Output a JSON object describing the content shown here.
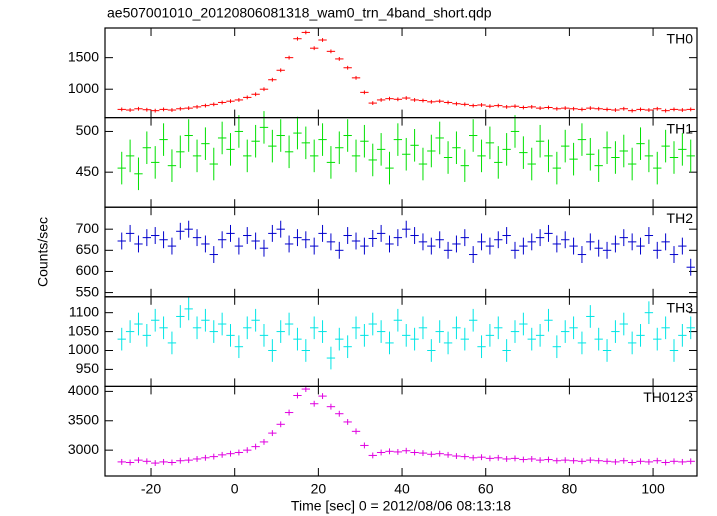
{
  "chart_data": {
    "type": "stacked-lightcurve",
    "title": "ae507001010_20120806081318_wam0_trn_4band_short.qdp",
    "xlabel": "Time [sec] 0 = 2012/08/06 08:13:18",
    "ylabel": "Counts/sec",
    "xlim": [
      -31,
      110.5
    ],
    "xticks": [
      -20,
      0,
      20,
      40,
      60,
      80,
      100
    ],
    "bin_width": 2,
    "x": [
      -27,
      -25,
      -23,
      -21,
      -19,
      -17,
      -15,
      -13,
      -11,
      -9,
      -7,
      -5,
      -3,
      -1,
      1,
      3,
      5,
      7,
      9,
      11,
      13,
      15,
      17,
      19,
      21,
      23,
      25,
      27,
      29,
      31,
      33,
      35,
      37,
      39,
      41,
      43,
      45,
      47,
      49,
      51,
      53,
      55,
      57,
      59,
      61,
      63,
      65,
      67,
      69,
      71,
      73,
      75,
      77,
      79,
      81,
      83,
      85,
      87,
      89,
      91,
      93,
      95,
      97,
      99,
      101,
      103,
      105,
      107,
      109
    ],
    "series": [
      {
        "name": "TH0",
        "color": "#ff0000",
        "ylim": [
          550,
          1970
        ],
        "yticks": [
          1000,
          1500
        ],
        "error": 30,
        "values": [
          680,
          670,
          690,
          675,
          660,
          680,
          670,
          690,
          700,
          720,
          740,
          760,
          790,
          810,
          830,
          870,
          920,
          1000,
          1150,
          1300,
          1500,
          1800,
          1900,
          1650,
          1780,
          1600,
          1480,
          1340,
          1180,
          950,
          780,
          830,
          850,
          840,
          860,
          830,
          820,
          800,
          810,
          790,
          770,
          760,
          740,
          750,
          730,
          740,
          720,
          730,
          710,
          720,
          700,
          710,
          690,
          700,
          690,
          680,
          700,
          690,
          680,
          670,
          690,
          660,
          680,
          670,
          690,
          660,
          680,
          670,
          680
        ]
      },
      {
        "name": "TH1",
        "color": "#00e000",
        "ylim": [
          407,
          517
        ],
        "yticks": [
          450,
          500
        ],
        "error": 20,
        "values": [
          455,
          470,
          448,
          480,
          462,
          490,
          458,
          475,
          495,
          470,
          485,
          460,
          492,
          478,
          500,
          470,
          488,
          505,
          482,
          495,
          475,
          498,
          486,
          470,
          490,
          462,
          480,
          495,
          470,
          488,
          465,
          478,
          455,
          490,
          472,
          483,
          460,
          476,
          492,
          468,
          480,
          458,
          495,
          470,
          486,
          462,
          478,
          500,
          474,
          460,
          488,
          470,
          455,
          482,
          466,
          490,
          472,
          458,
          480,
          468,
          476,
          460,
          485,
          470,
          455,
          482,
          468,
          478,
          470
        ]
      },
      {
        "name": "TH2",
        "color": "#0000cc",
        "ylim": [
          540,
          752
        ],
        "yticks": [
          550,
          600,
          650,
          700
        ],
        "error": 20,
        "values": [
          672,
          690,
          665,
          680,
          685,
          675,
          660,
          695,
          700,
          680,
          665,
          640,
          675,
          690,
          660,
          685,
          672,
          655,
          690,
          700,
          665,
          680,
          675,
          660,
          690,
          670,
          650,
          685,
          672,
          660,
          678,
          690,
          665,
          680,
          700,
          685,
          670,
          660,
          675,
          650,
          665,
          680,
          640,
          670,
          660,
          675,
          685,
          650,
          660,
          670,
          680,
          690,
          665,
          675,
          660,
          640,
          670,
          655,
          650,
          665,
          680,
          670,
          660,
          685,
          650,
          670,
          640,
          660,
          610
        ]
      },
      {
        "name": "TH3",
        "color": "#00e5e5",
        "ylim": [
          905,
          1142
        ],
        "yticks": [
          950,
          1000,
          1050,
          1100
        ],
        "error": 30,
        "values": [
          1030,
          1050,
          1070,
          1040,
          1080,
          1060,
          1020,
          1090,
          1110,
          1060,
          1080,
          1050,
          1070,
          1040,
          1010,
          1060,
          1080,
          1040,
          1000,
          1050,
          1070,
          1030,
          1000,
          1060,
          1050,
          980,
          1030,
          1010,
          1060,
          1040,
          1070,
          1050,
          1020,
          1080,
          1040,
          1030,
          1060,
          1000,
          1050,
          1020,
          1060,
          1030,
          1080,
          1010,
          1040,
          1060,
          1000,
          1050,
          1070,
          1030,
          1040,
          1080,
          1010,
          1050,
          1060,
          1020,
          1090,
          1030,
          1000,
          1050,
          1070,
          1020,
          1040,
          1100,
          1030,
          1060,
          1000,
          1040,
          1060
        ]
      },
      {
        "name": "TH0123",
        "color": "#e000e0",
        "ylim": [
          2560,
          4085
        ],
        "yticks": [
          3000,
          3500,
          4000
        ],
        "error": 50,
        "values": [
          2800,
          2790,
          2830,
          2810,
          2780,
          2800,
          2790,
          2820,
          2830,
          2850,
          2870,
          2890,
          2920,
          2940,
          2960,
          3000,
          3060,
          3140,
          3290,
          3440,
          3640,
          3930,
          4040,
          3790,
          3920,
          3740,
          3620,
          3480,
          3320,
          3080,
          2910,
          2960,
          2980,
          2970,
          2990,
          2960,
          2950,
          2930,
          2940,
          2920,
          2900,
          2890,
          2870,
          2880,
          2860,
          2870,
          2850,
          2860,
          2840,
          2850,
          2830,
          2840,
          2820,
          2830,
          2820,
          2810,
          2830,
          2820,
          2810,
          2800,
          2820,
          2790,
          2810,
          2800,
          2820,
          2790,
          2810,
          2800,
          2810
        ]
      }
    ]
  }
}
